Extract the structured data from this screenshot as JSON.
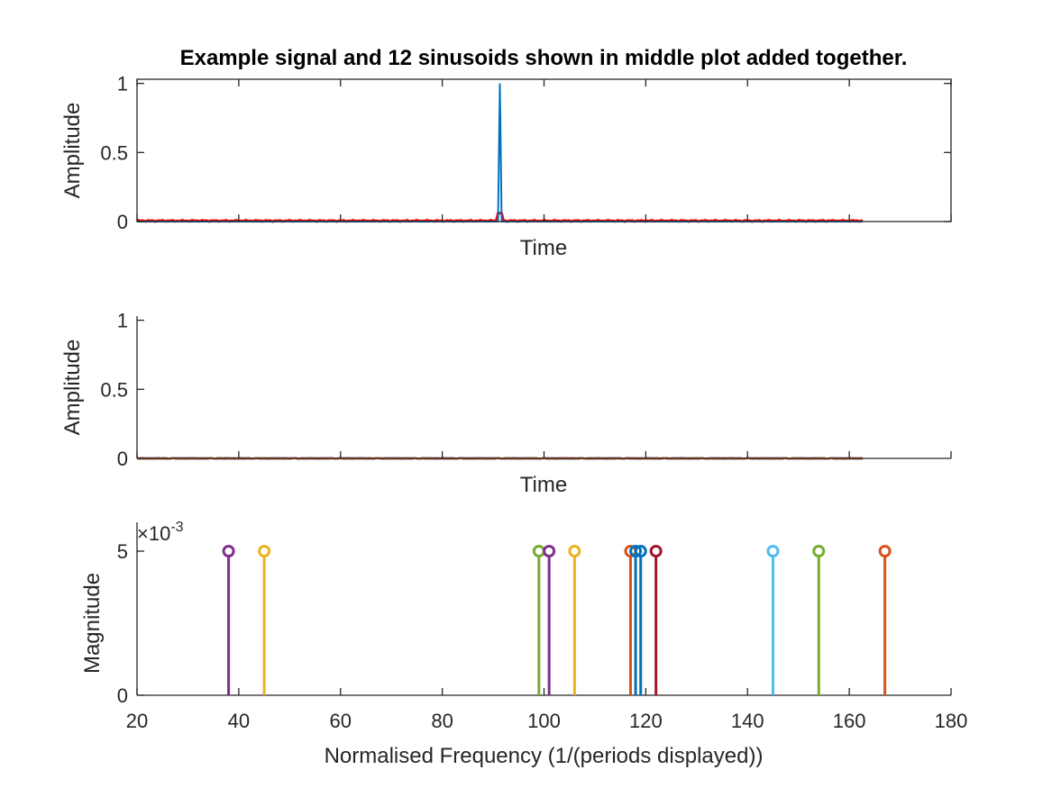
{
  "figure_title": "Example signal and 12 sinusoids shown in middle plot added together.",
  "colors": {
    "matlab_blue": "#0072BD",
    "red": "#FF0000",
    "axis": "#262626"
  },
  "chart_data": [
    {
      "type": "line",
      "title": "Example signal and 12 sinusoids shown in middle plot added together.",
      "xlabel": "Time",
      "ylabel": "Amplitude",
      "ylim": [
        0,
        1.03
      ],
      "yticks": [
        "0",
        "0.5",
        "1"
      ],
      "yticks_values": [
        0,
        0.5,
        1
      ],
      "grid": false,
      "series": [
        {
          "color": "#0072BD",
          "values_desc": "impulse",
          "impulse_position_fraction": 0.5,
          "impulse_height": 1
        },
        {
          "color": "#FF0000",
          "values_desc": "sum of sinusoids",
          "peak_at_impulse": 0.06,
          "ripple": 0.01
        }
      ]
    },
    {
      "type": "line",
      "xlabel": "Time",
      "ylabel": "Amplitude",
      "ylim": [
        0,
        1.03
      ],
      "yticks": [
        "0",
        "0.5",
        "1"
      ],
      "yticks_values": [
        0,
        0.5,
        1
      ],
      "grid": false,
      "sinusoid_amplitude": 0.005
    },
    {
      "type": "stem",
      "xlabel": "Normalised Frequency (1/(periods displayed))",
      "ylabel": "Magnitude",
      "exponent_label": "10",
      "exponent_power": "-3",
      "xlim": [
        20,
        180
      ],
      "ylim": [
        0,
        6
      ],
      "xticks": [
        "20",
        "40",
        "60",
        "80",
        "100",
        "120",
        "140",
        "160",
        "180"
      ],
      "xticks_values": [
        20,
        40,
        60,
        80,
        100,
        120,
        140,
        160,
        180
      ],
      "yticks": [
        "0",
        "5"
      ],
      "yticks_values": [
        0,
        5
      ],
      "grid": false,
      "series": [
        {
          "x": 38,
          "y": 5,
          "color": "#7E2F8E"
        },
        {
          "x": 45,
          "y": 5,
          "color": "#EDB120"
        },
        {
          "x": 99,
          "y": 5,
          "color": "#77AC30"
        },
        {
          "x": 101,
          "y": 5,
          "color": "#7E2F8E"
        },
        {
          "x": 106,
          "y": 5,
          "color": "#EDB120"
        },
        {
          "x": 117,
          "y": 5,
          "color": "#D95319"
        },
        {
          "x": 118,
          "y": 5,
          "color": "#0072BD"
        },
        {
          "x": 119,
          "y": 5,
          "color": "#0072BD"
        },
        {
          "x": 122,
          "y": 5,
          "color": "#A2142F"
        },
        {
          "x": 145,
          "y": 5,
          "color": "#4DBEEE"
        },
        {
          "x": 154,
          "y": 5,
          "color": "#77AC30"
        },
        {
          "x": 167,
          "y": 5,
          "color": "#D95319"
        }
      ]
    }
  ]
}
